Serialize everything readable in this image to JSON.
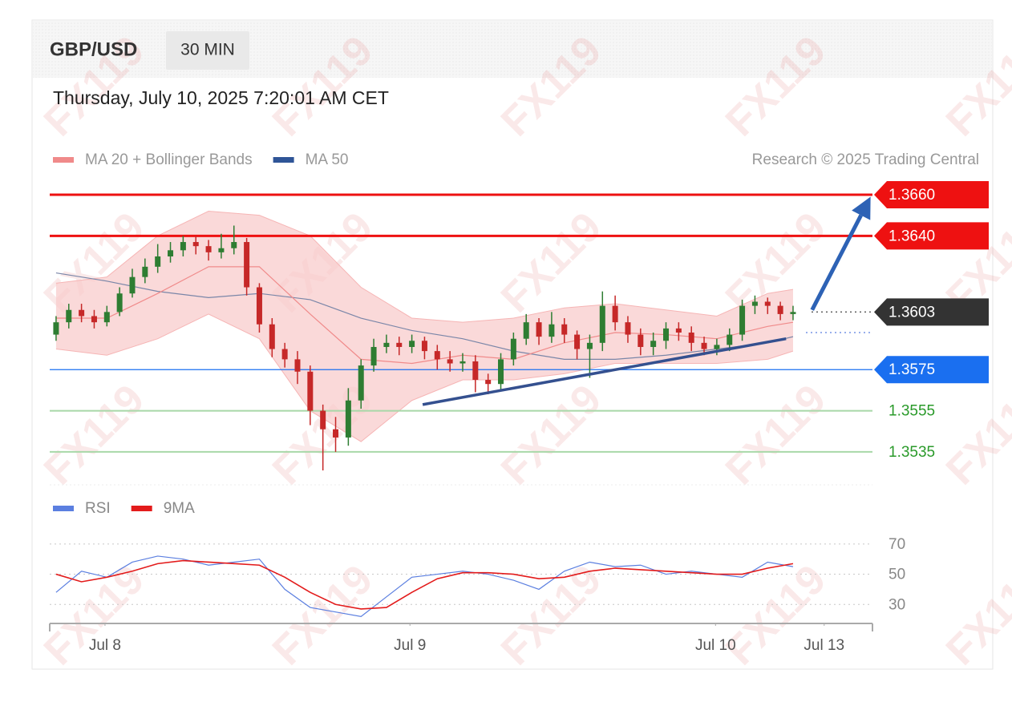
{
  "header": {
    "symbol": "GBP/USD",
    "interval": "30 MIN",
    "timestamp": "Thursday, July 10, 2025 7:20:01 AM CET",
    "credit": "Research © 2025 Trading Central"
  },
  "watermark": "FX119",
  "chart_data": [
    {
      "type": "candlestick",
      "xlim": [
        0,
        129.5
      ],
      "ylim": [
        1.3519,
        1.3667
      ],
      "candles": {
        "x": [
          1,
          3,
          5,
          7,
          9,
          11,
          13,
          15,
          17,
          19,
          21,
          23,
          25,
          27,
          29,
          31,
          33,
          35,
          37,
          39,
          41,
          43,
          45,
          47,
          49,
          51,
          53,
          55,
          57,
          59,
          61,
          63,
          65,
          67,
          69,
          71,
          73,
          75,
          77,
          79,
          81,
          83,
          85,
          87,
          89,
          91,
          93,
          95,
          97,
          99,
          101,
          103,
          105,
          107,
          109,
          111,
          113,
          115,
          117
        ],
        "open": [
          1.3592,
          1.3598,
          1.3604,
          1.3601,
          1.3598,
          1.3603,
          1.3612,
          1.362,
          1.3625,
          1.363,
          1.3633,
          1.3637,
          1.3635,
          1.3632,
          1.3634,
          1.3637,
          1.3615,
          1.3597,
          1.3585,
          1.358,
          1.3574,
          1.3555,
          1.3546,
          1.3542,
          1.356,
          1.3577,
          1.3586,
          1.3588,
          1.3586,
          1.3589,
          1.3584,
          1.358,
          1.3578,
          1.3579,
          1.357,
          1.3568,
          1.358,
          1.359,
          1.3598,
          1.3591,
          1.3597,
          1.3592,
          1.3585,
          1.3588,
          1.3606,
          1.3598,
          1.3592,
          1.3586,
          1.3589,
          1.3595,
          1.3593,
          1.3588,
          1.3585,
          1.3587,
          1.3592,
          1.3606,
          1.3608,
          1.3606,
          1.3602
        ],
        "high": [
          1.3601,
          1.3607,
          1.3607,
          1.3604,
          1.3606,
          1.3615,
          1.3624,
          1.3629,
          1.3636,
          1.3637,
          1.364,
          1.364,
          1.3638,
          1.3641,
          1.3645,
          1.3639,
          1.3617,
          1.36,
          1.3588,
          1.3584,
          1.3577,
          1.3558,
          1.3552,
          1.3566,
          1.358,
          1.359,
          1.3592,
          1.3591,
          1.3592,
          1.3591,
          1.3587,
          1.3584,
          1.3583,
          1.3582,
          1.3573,
          1.3583,
          1.3593,
          1.3602,
          1.36,
          1.3603,
          1.36,
          1.3594,
          1.3592,
          1.3613,
          1.3611,
          1.3601,
          1.3595,
          1.3593,
          1.3598,
          1.3598,
          1.3596,
          1.3591,
          1.359,
          1.3595,
          1.3609,
          1.3611,
          1.361,
          1.3608,
          1.3606
        ],
        "low": [
          1.3589,
          1.3595,
          1.3598,
          1.3595,
          1.3596,
          1.3601,
          1.361,
          1.3617,
          1.3622,
          1.3627,
          1.363,
          1.3631,
          1.3628,
          1.3629,
          1.3631,
          1.3611,
          1.3593,
          1.3581,
          1.3576,
          1.3568,
          1.3548,
          1.3526,
          1.3535,
          1.3538,
          1.3556,
          1.3574,
          1.3583,
          1.3582,
          1.3583,
          1.358,
          1.3575,
          1.3574,
          1.3574,
          1.3564,
          1.3563,
          1.3565,
          1.3577,
          1.3587,
          1.3587,
          1.3588,
          1.3588,
          1.358,
          1.3571,
          1.3584,
          1.3594,
          1.3588,
          1.3582,
          1.3582,
          1.3585,
          1.3589,
          1.3584,
          1.3582,
          1.3582,
          1.3584,
          1.3589,
          1.3602,
          1.3602,
          1.3599,
          1.3599
        ],
        "close": [
          1.3598,
          1.3604,
          1.3601,
          1.3598,
          1.3603,
          1.3612,
          1.362,
          1.3625,
          1.363,
          1.3633,
          1.3637,
          1.3635,
          1.3632,
          1.3634,
          1.3637,
          1.3615,
          1.3597,
          1.3585,
          1.358,
          1.3574,
          1.3555,
          1.3546,
          1.3542,
          1.356,
          1.3577,
          1.3586,
          1.3588,
          1.3586,
          1.3589,
          1.3584,
          1.358,
          1.3578,
          1.3579,
          1.357,
          1.3568,
          1.358,
          1.359,
          1.3598,
          1.3591,
          1.3597,
          1.3592,
          1.3585,
          1.3588,
          1.3606,
          1.3598,
          1.3592,
          1.3586,
          1.3589,
          1.3595,
          1.3593,
          1.3588,
          1.3585,
          1.3587,
          1.3592,
          1.3606,
          1.3608,
          1.3606,
          1.3602,
          1.3603
        ],
        "up_color": "#2e7d32",
        "down_color": "#c62828"
      },
      "indicators": {
        "x": [
          1,
          9,
          17,
          25,
          33,
          41,
          49,
          57,
          65,
          73,
          81,
          89,
          97,
          105,
          113,
          117
        ],
        "ma20": [
          1.36,
          1.36,
          1.3612,
          1.3625,
          1.3625,
          1.3602,
          1.358,
          1.3578,
          1.3582,
          1.358,
          1.3588,
          1.3593,
          1.3592,
          1.359,
          1.3596,
          1.3598
        ],
        "upper": [
          1.3617,
          1.362,
          1.364,
          1.3652,
          1.365,
          1.364,
          1.3615,
          1.36,
          1.3598,
          1.36,
          1.3605,
          1.3607,
          1.3604,
          1.3601,
          1.3612,
          1.3614
        ],
        "lower": [
          1.3585,
          1.3582,
          1.359,
          1.3602,
          1.359,
          1.3555,
          1.354,
          1.356,
          1.357,
          1.357,
          1.3573,
          1.3578,
          1.3578,
          1.3578,
          1.358,
          1.3584
        ],
        "ma50": [
          1.3622,
          1.3618,
          1.3613,
          1.361,
          1.3612,
          1.3609,
          1.36,
          1.3594,
          1.359,
          1.3584,
          1.358,
          1.358,
          1.3582,
          1.3585,
          1.3588,
          1.3591
        ]
      },
      "legend": [
        {
          "name": "MA 20 + Bollinger Bands",
          "color": "#f08a8a"
        },
        {
          "name": "MA 50",
          "color": "#2f5597"
        }
      ],
      "levels": [
        {
          "value": 1.366,
          "label": "1.3660",
          "color": "#ee1111",
          "style": "tag",
          "line": "solid"
        },
        {
          "value": 1.364,
          "label": "1.3640",
          "color": "#ee1111",
          "style": "tag",
          "line": "solid"
        },
        {
          "value": 1.3603,
          "label": "1.3603",
          "color": "#333333",
          "style": "tag",
          "line": "dotted"
        },
        {
          "value": 1.3575,
          "label": "1.3575",
          "color": "#1a6ff0",
          "style": "tag",
          "line": "thin"
        },
        {
          "value": 1.3555,
          "label": "1.3555",
          "color": "#2a9a2a",
          "style": "text",
          "line": "faint"
        },
        {
          "value": 1.3535,
          "label": "1.3535",
          "color": "#2a9a2a",
          "style": "text",
          "line": "faint"
        }
      ],
      "ma_level": 1.3593,
      "trendline": {
        "x": [
          58.7,
          115.9
        ],
        "y": [
          1.3558,
          1.359
        ],
        "color": "#34508f"
      },
      "arrow": {
        "x": [
          120,
          129.2
        ],
        "y": [
          1.3604,
          1.3659
        ],
        "color": "#2d62b5"
      }
    },
    {
      "type": "line",
      "ylim": [
        19,
        80
      ],
      "yticks": [
        30,
        50,
        70
      ],
      "xlim": [
        0,
        129.5
      ],
      "xticks": [
        {
          "value": 8.7,
          "label": "Jul 8"
        },
        {
          "value": 56.7,
          "label": "Jul 9"
        },
        {
          "value": 104.8,
          "label": "Jul 10"
        },
        {
          "value": 121.9,
          "label": "Jul 13"
        }
      ],
      "x": [
        1,
        5,
        9,
        13,
        17,
        21,
        25,
        29,
        33,
        37,
        41,
        45,
        49,
        53,
        57,
        61,
        65,
        69,
        73,
        77,
        81,
        85,
        89,
        93,
        97,
        101,
        105,
        109,
        113,
        117
      ],
      "series": [
        {
          "name": "RSI",
          "color": "#5b7fe0",
          "values": [
            38,
            52,
            48,
            58,
            62,
            60,
            56,
            58,
            60,
            40,
            28,
            25,
            22,
            35,
            48,
            50,
            52,
            50,
            46,
            40,
            52,
            58,
            55,
            56,
            50,
            52,
            50,
            48,
            58,
            55
          ]
        },
        {
          "name": "9MA",
          "color": "#e31b1b",
          "values": [
            50,
            45,
            48,
            52,
            57,
            59,
            58,
            57,
            56,
            48,
            38,
            30,
            27,
            28,
            38,
            47,
            51,
            51,
            50,
            47,
            48,
            52,
            54,
            53,
            52,
            51,
            50,
            50,
            54,
            57
          ]
        }
      ]
    }
  ]
}
